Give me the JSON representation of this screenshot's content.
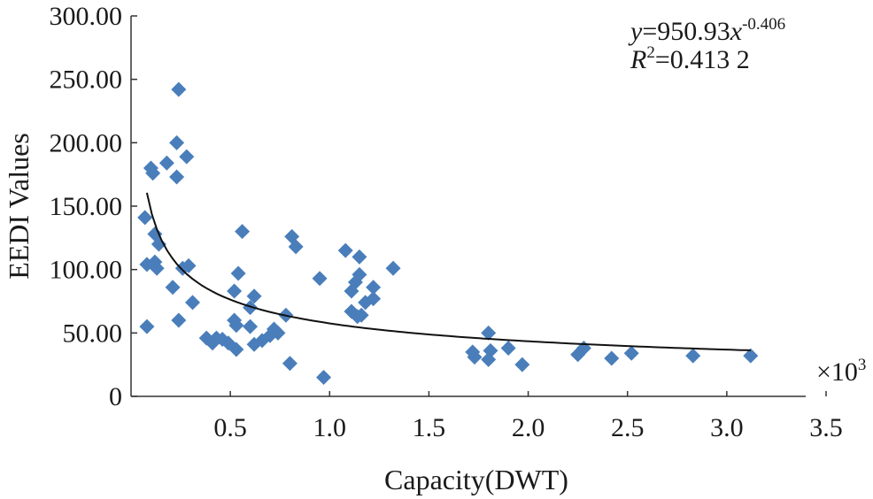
{
  "chart_data": {
    "type": "scatter",
    "xlabel": "Capacity(DWT)",
    "ylabel": "EEDI Values",
    "x_multiplier": "×10",
    "x_multiplier_exp": "3",
    "xlim": [
      0,
      3.5
    ],
    "ylim": [
      0,
      300
    ],
    "grid": false,
    "legend": "none",
    "x_ticks": [
      {
        "value": 0.5,
        "label": "0.5"
      },
      {
        "value": 1.0,
        "label": "1.0"
      },
      {
        "value": 1.5,
        "label": "1.5"
      },
      {
        "value": 2.0,
        "label": "2.0"
      },
      {
        "value": 2.5,
        "label": "2.5"
      },
      {
        "value": 3.0,
        "label": "3.0"
      },
      {
        "value": 3.5,
        "label": "3.5"
      }
    ],
    "y_ticks": [
      {
        "value": 0,
        "label": "0"
      },
      {
        "value": 50,
        "label": "50.00"
      },
      {
        "value": 100,
        "label": "100.00"
      },
      {
        "value": 150,
        "label": "150.00"
      },
      {
        "value": 200,
        "label": "200.00"
      },
      {
        "value": 250,
        "label": "250.00"
      },
      {
        "value": 300,
        "label": "300.00"
      }
    ],
    "annotation": {
      "eq_y": "y",
      "eq_main": "=950.93",
      "eq_x": "x",
      "eq_exp": "-0.406",
      "r2_r": "R",
      "r2_sup": "2",
      "r2_value": "=0.413 2"
    },
    "trendline": {
      "coefficient": 950.93,
      "exponent": -0.406,
      "x_units": 1000,
      "x_range": [
        0.08,
        3.12
      ]
    },
    "series": [
      {
        "name": "EEDI",
        "color": "#4a7ebb",
        "points": [
          [
            0.24,
            242
          ],
          [
            0.23,
            200
          ],
          [
            0.28,
            189
          ],
          [
            0.18,
            184
          ],
          [
            0.23,
            173
          ],
          [
            0.1,
            180
          ],
          [
            0.11,
            176
          ],
          [
            0.07,
            141
          ],
          [
            0.12,
            128
          ],
          [
            0.14,
            120
          ],
          [
            0.08,
            104
          ],
          [
            0.12,
            106
          ],
          [
            0.13,
            101
          ],
          [
            0.29,
            103
          ],
          [
            0.26,
            101
          ],
          [
            0.21,
            86
          ],
          [
            0.31,
            74
          ],
          [
            0.08,
            55
          ],
          [
            0.24,
            60
          ],
          [
            0.56,
            130
          ],
          [
            0.54,
            97
          ],
          [
            0.52,
            83
          ],
          [
            0.62,
            79
          ],
          [
            0.6,
            70
          ],
          [
            0.52,
            60
          ],
          [
            0.53,
            56
          ],
          [
            0.6,
            55
          ],
          [
            0.38,
            46
          ],
          [
            0.43,
            46
          ],
          [
            0.41,
            42
          ],
          [
            0.46,
            45
          ],
          [
            0.49,
            42
          ],
          [
            0.53,
            37
          ],
          [
            0.62,
            41
          ],
          [
            0.66,
            44
          ],
          [
            0.7,
            48
          ],
          [
            0.74,
            50
          ],
          [
            0.72,
            53
          ],
          [
            0.78,
            64
          ],
          [
            0.81,
            126
          ],
          [
            0.83,
            118
          ],
          [
            0.8,
            26
          ],
          [
            0.95,
            93
          ],
          [
            0.97,
            15
          ],
          [
            1.08,
            115
          ],
          [
            1.15,
            110
          ],
          [
            1.32,
            101
          ],
          [
            1.15,
            96
          ],
          [
            1.22,
            86
          ],
          [
            1.11,
            83
          ],
          [
            1.13,
            90
          ],
          [
            1.22,
            77
          ],
          [
            1.18,
            74
          ],
          [
            1.11,
            67
          ],
          [
            1.14,
            63
          ],
          [
            1.16,
            64
          ],
          [
            1.8,
            50
          ],
          [
            1.72,
            35
          ],
          [
            1.73,
            31
          ],
          [
            1.8,
            29
          ],
          [
            1.81,
            36
          ],
          [
            1.9,
            38
          ],
          [
            1.97,
            25
          ],
          [
            2.25,
            33
          ],
          [
            2.28,
            38
          ],
          [
            2.42,
            30
          ],
          [
            2.52,
            34
          ],
          [
            2.83,
            32
          ],
          [
            3.12,
            32
          ]
        ]
      }
    ]
  }
}
